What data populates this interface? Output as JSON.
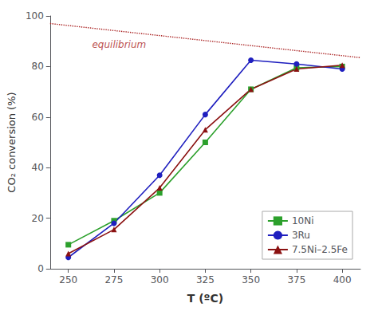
{
  "chart_data": {
    "type": "line",
    "xlabel": "T (ºC)",
    "ylabel": "CO₂ conversion (%)",
    "xlim": [
      240,
      410
    ],
    "ylim": [
      0,
      100
    ],
    "xticks": [
      250,
      275,
      300,
      325,
      350,
      375,
      400
    ],
    "yticks": [
      0,
      20,
      40,
      60,
      80,
      100
    ],
    "grid": false,
    "legend": "lower right",
    "series": [
      {
        "name": "10Ni",
        "color": "#2ca02c",
        "marker": "square",
        "x": [
          250,
          275,
          300,
          325,
          350,
          375,
          400
        ],
        "values": [
          9.5,
          19.0,
          30.0,
          50.0,
          71.0,
          79.5,
          80.0
        ]
      },
      {
        "name": "3Ru",
        "color": "#1f1fbf",
        "marker": "circle",
        "x": [
          250,
          275,
          300,
          325,
          350,
          375,
          400
        ],
        "values": [
          4.5,
          18.0,
          37.0,
          61.0,
          82.5,
          81.0,
          79.0
        ]
      },
      {
        "name": "7.5Ni–2.5Fe",
        "color": "#8B1111",
        "marker": "triangle",
        "x": [
          250,
          275,
          300,
          325,
          350,
          375,
          400
        ],
        "values": [
          6.0,
          15.5,
          32.0,
          55.0,
          71.0,
          79.0,
          80.5
        ]
      },
      {
        "color": "#aa2222",
        "line_style": "dotted",
        "x": [
          240,
          410
        ],
        "values": [
          97.0,
          83.5
        ]
      }
    ],
    "annotations": [
      {
        "text": "equilibrium",
        "x": 263,
        "y": 88.5,
        "color": "#aa2222"
      }
    ]
  }
}
